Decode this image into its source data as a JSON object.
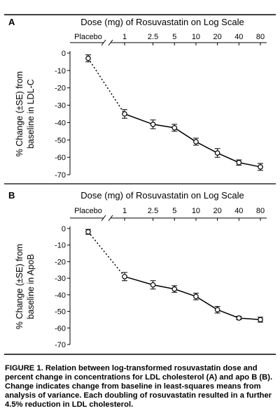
{
  "chart_data": [
    {
      "panel": "A",
      "type": "line",
      "title": "Dose (mg) of Rosuvastatin on Log Scale",
      "xlabel": "Dose (mg) of Rosuvastatin on Log Scale",
      "ylabel_lines": [
        "% Change (±SE) from",
        "baseline in LDL-C"
      ],
      "x_scale": "log",
      "categories": [
        "Placebo",
        "1",
        "2.5",
        "5",
        "10",
        "20",
        "40",
        "80"
      ],
      "values": [
        -3,
        -35,
        -41,
        -43,
        -51,
        -57.5,
        -63,
        -65.5
      ],
      "se": [
        2,
        2.5,
        2.5,
        2,
        2,
        2.5,
        1.5,
        2
      ],
      "ylim": [
        -70,
        0
      ],
      "yticks": [
        "0",
        "-10",
        "-20",
        "-30",
        "-40",
        "-50",
        "-60",
        "-70"
      ],
      "placebo_segment": "dotted",
      "grid": false
    },
    {
      "panel": "B",
      "type": "line",
      "title": "Dose (mg) of Rosuvastatin on Log Scale",
      "xlabel": "Dose (mg) of Rosuvastatin on Log Scale",
      "ylabel_lines": [
        "% Change (±SE) from",
        "baseline in ApoB"
      ],
      "x_scale": "log",
      "categories": [
        "Placebo",
        "1",
        "2.5",
        "5",
        "10",
        "20",
        "40",
        "80"
      ],
      "values": [
        -2,
        -29,
        -34,
        -36.5,
        -41,
        -49,
        -54,
        -55
      ],
      "se": [
        1.5,
        2.5,
        2.5,
        2,
        2,
        2,
        1,
        1.5
      ],
      "ylim": [
        -70,
        0
      ],
      "yticks": [
        "0",
        "-10",
        "-20",
        "-30",
        "-40",
        "-50",
        "-60",
        "-70"
      ],
      "placebo_segment": "dotted",
      "grid": false
    }
  ],
  "caption": {
    "label": "FIGURE 1.",
    "text": "Relation between log-transformed rosuvastatin dose and percent change in concentrations for LDL cholesterol (A) and apo B (B). Change indicates change from baseline in least-squares means from analysis of variance. Each doubling of rosuvastatin resulted in a further 4.5% reduction in LDL cholesterol."
  }
}
